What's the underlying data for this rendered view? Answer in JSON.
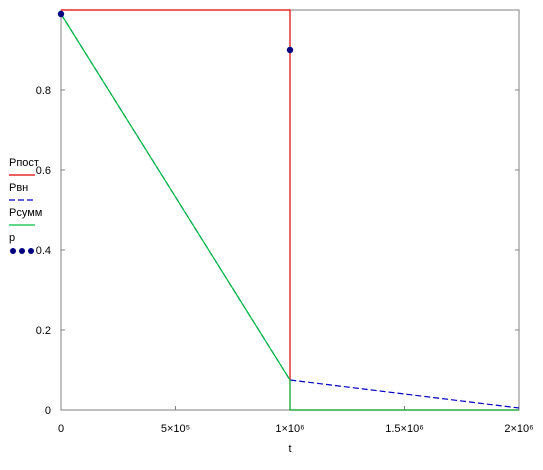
{
  "chart_data": {
    "type": "line",
    "x_label": "t",
    "xlim": [
      0,
      2000000
    ],
    "ylim": [
      0,
      1
    ],
    "xticks": [
      0,
      {
        "value": 500000,
        "label": "5×10⁵"
      },
      {
        "value": 1000000,
        "label": "1×10⁶"
      },
      {
        "value": 1500000,
        "label": "1.5×10⁶"
      },
      {
        "value": 2000000,
        "label": "2×10⁶"
      }
    ],
    "yticks": [
      0,
      0.2,
      0.4,
      0.6,
      0.8
    ],
    "series": [
      {
        "name": "Рпост",
        "color": "#e00000",
        "style": "solid",
        "x": [
          0,
          1000000,
          1000000,
          2000000
        ],
        "values": [
          1,
          1,
          0,
          0
        ]
      },
      {
        "name": "Рвн",
        "color": "#0000c0",
        "style": "dashed",
        "x": [
          0,
          1000000,
          2000000
        ],
        "values": [
          0.99,
          0.075,
          0.005
        ]
      },
      {
        "name": "Рсумм",
        "color": "#00c040",
        "style": "solid",
        "x": [
          0,
          1000000,
          1000000,
          2000000
        ],
        "values": [
          0.99,
          0.075,
          0,
          0
        ]
      },
      {
        "name": "p",
        "color": "#000080",
        "style": "points",
        "x": [
          0,
          1000000
        ],
        "values": [
          0.99,
          0.9
        ]
      }
    ]
  }
}
